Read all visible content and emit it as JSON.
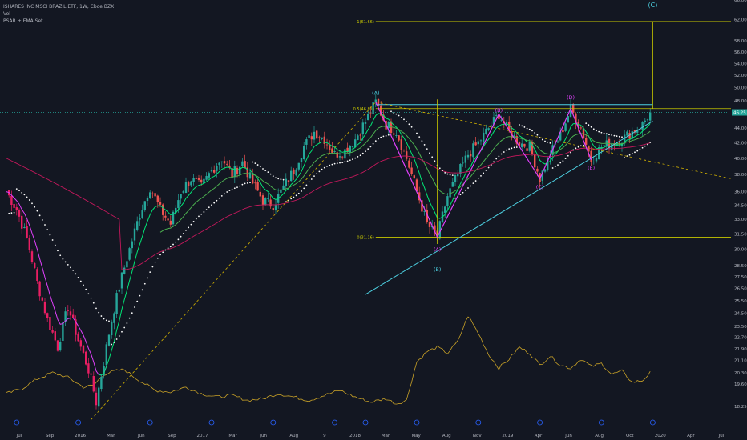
{
  "legend": {
    "title": "ISHARES INC MSCI BRAZIL ETF, 1W, Cboe BZX",
    "vol": "Vol",
    "indicators": "PSAR + EMA Set"
  },
  "colors": {
    "background": "#131722",
    "up": "#26a69a",
    "down": "#ef5350",
    "down_dark": "#e91e63",
    "ema_fast": "#00e676",
    "ema_slow": "#4caf50",
    "ema_long": "#c2185b",
    "ema_mid": "#e040fb",
    "psar": "#ffffff",
    "volume": "#c9a227",
    "fib": "#c8c800",
    "trend": "#4dd0e1",
    "wave": "#e040fb",
    "dashed": "#d4b400"
  },
  "chart_data": {
    "type": "candlestick",
    "title": "ISHARES INC MSCI BRAZIL ETF, 1W, Cboe BZX",
    "ylim": [
      17.0,
      66.0
    ],
    "y_ticks": [
      18.25,
      19.6,
      20.3,
      21.1,
      21.9,
      22.7,
      23.5,
      24.5,
      25.5,
      26.5,
      27.5,
      28.5,
      30.0,
      31.5,
      33.0,
      34.5,
      36.0,
      38.0,
      40.0,
      42.0,
      44.0,
      46.0,
      48.0,
      50.0,
      52.0,
      54.0,
      56.0,
      58.0,
      62.0,
      66.0
    ],
    "y_tick_labels": [
      "18.25",
      "19.60",
      "20.30",
      "21.10",
      "21.90",
      "22.70",
      "23.50",
      "24.50",
      "25.50",
      "26.50",
      "27.50",
      "28.50",
      "30.00",
      "31.50",
      "33.00",
      "34.50",
      "36.00",
      "38.00",
      "40.00",
      "42.00",
      "44.00",
      "46.00",
      "48.00",
      "50.00",
      "52.00",
      "54.00",
      "56.00",
      "58.00",
      "62.00",
      "66.00"
    ],
    "x_ticks": [
      "Jul",
      "Sep",
      "2016",
      "Mar",
      "Jun",
      "Sep",
      "2017",
      "Mar",
      "Jun",
      "Aug",
      "9",
      "2018",
      "Mar",
      "May",
      "Aug",
      "Nov",
      "2019",
      "Apr",
      "Jun",
      "Aug",
      "Oct",
      "2020",
      "Apr",
      "Jul"
    ],
    "current_price": "46.25",
    "price_anchors": [
      [
        0,
        36.0
      ],
      [
        4,
        34.0
      ],
      [
        8,
        31.0
      ],
      [
        12,
        27.0
      ],
      [
        16,
        24.0
      ],
      [
        20,
        22.0
      ],
      [
        24,
        25.0
      ],
      [
        28,
        22.5
      ],
      [
        32,
        20.5
      ],
      [
        35,
        18.5
      ],
      [
        38,
        21.0
      ],
      [
        41,
        24.0
      ],
      [
        45,
        27.5
      ],
      [
        48,
        30.0
      ],
      [
        52,
        33.5
      ],
      [
        56,
        36.5
      ],
      [
        60,
        34.0
      ],
      [
        64,
        32.5
      ],
      [
        68,
        36.0
      ],
      [
        72,
        37.5
      ],
      [
        76,
        36.5
      ],
      [
        80,
        38.5
      ],
      [
        84,
        40.0
      ],
      [
        88,
        38.0
      ],
      [
        92,
        39.5
      ],
      [
        96,
        37.0
      ],
      [
        100,
        35.0
      ],
      [
        104,
        34.5
      ],
      [
        108,
        36.5
      ],
      [
        112,
        38.5
      ],
      [
        116,
        41.5
      ],
      [
        120,
        43.5
      ],
      [
        124,
        42.5
      ],
      [
        128,
        40.5
      ],
      [
        132,
        41.0
      ],
      [
        136,
        42.5
      ],
      [
        140,
        45.0
      ],
      [
        144,
        47.8
      ],
      [
        148,
        44.5
      ],
      [
        152,
        43.5
      ],
      [
        156,
        40.0
      ],
      [
        160,
        36.0
      ],
      [
        164,
        32.5
      ],
      [
        168,
        31.2
      ],
      [
        172,
        35.5
      ],
      [
        176,
        38.0
      ],
      [
        180,
        40.5
      ],
      [
        184,
        42.0
      ],
      [
        188,
        44.0
      ],
      [
        192,
        46.0
      ],
      [
        196,
        43.5
      ],
      [
        200,
        42.0
      ],
      [
        204,
        41.5
      ],
      [
        208,
        37.5
      ],
      [
        212,
        40.5
      ],
      [
        216,
        43.0
      ],
      [
        220,
        46.8
      ],
      [
        224,
        44.0
      ],
      [
        228,
        39.8
      ],
      [
        232,
        41.5
      ],
      [
        236,
        42.0
      ],
      [
        240,
        42.5
      ],
      [
        244,
        43.5
      ],
      [
        248,
        44.5
      ],
      [
        251,
        46.25
      ]
    ],
    "volume_anchors": [
      [
        0,
        19.0
      ],
      [
        6,
        19.3
      ],
      [
        12,
        19.9
      ],
      [
        18,
        20.3
      ],
      [
        24,
        20.0
      ],
      [
        30,
        19.4
      ],
      [
        34,
        19.5
      ],
      [
        38,
        20.2
      ],
      [
        42,
        20.4
      ],
      [
        46,
        20.5
      ],
      [
        50,
        20.0
      ],
      [
        54,
        19.6
      ],
      [
        58,
        19.2
      ],
      [
        64,
        19.1
      ],
      [
        70,
        19.4
      ],
      [
        76,
        19.0
      ],
      [
        82,
        18.8
      ],
      [
        88,
        18.9
      ],
      [
        94,
        18.6
      ],
      [
        100,
        18.7
      ],
      [
        106,
        19.0
      ],
      [
        112,
        18.8
      ],
      [
        118,
        18.6
      ],
      [
        124,
        18.9
      ],
      [
        130,
        19.2
      ],
      [
        136,
        18.8
      ],
      [
        142,
        18.5
      ],
      [
        148,
        18.7
      ],
      [
        152,
        18.4
      ],
      [
        156,
        18.6
      ],
      [
        160,
        21.0
      ],
      [
        164,
        21.7
      ],
      [
        168,
        22.0
      ],
      [
        172,
        21.6
      ],
      [
        176,
        22.4
      ],
      [
        180,
        24.3
      ],
      [
        184,
        23.0
      ],
      [
        188,
        21.5
      ],
      [
        192,
        20.6
      ],
      [
        196,
        21.2
      ],
      [
        200,
        22.0
      ],
      [
        204,
        21.6
      ],
      [
        208,
        20.8
      ],
      [
        212,
        21.4
      ],
      [
        216,
        20.8
      ],
      [
        220,
        20.6
      ],
      [
        224,
        21.2
      ],
      [
        228,
        20.7
      ],
      [
        232,
        20.9
      ],
      [
        236,
        20.2
      ],
      [
        240,
        20.4
      ],
      [
        244,
        19.7
      ],
      [
        248,
        19.8
      ],
      [
        251,
        20.3
      ]
    ],
    "fib_levels": [
      {
        "label": "1(61.66)",
        "value": 61.66
      },
      {
        "label": "0.5(46.81)",
        "value": 46.81
      },
      {
        "label": "0(31.16)",
        "value": 31.16
      }
    ],
    "wave_labels": [
      {
        "label": "(C)",
        "week": 252,
        "value": 64.5,
        "color": "trend"
      },
      {
        "label": "(A)",
        "week": 144,
        "value": 48.9,
        "color": "trend"
      },
      {
        "label": "(B)",
        "week": 192,
        "value": 46.3,
        "color": "wave"
      },
      {
        "label": "(D)",
        "week": 220,
        "value": 48.2,
        "color": "wave"
      },
      {
        "label": "(C)",
        "week": 208,
        "value": 36.3,
        "color": "wave"
      },
      {
        "label": "(E)",
        "week": 228,
        "value": 38.6,
        "color": "wave"
      },
      {
        "label": "(A)",
        "week": 168,
        "value": 29.8,
        "color": "wave"
      },
      {
        "label": "(B)",
        "week": 168,
        "value": 28.0,
        "color": "trend"
      }
    ],
    "wave_path": [
      [
        144,
        47.8
      ],
      [
        168,
        31.2
      ],
      [
        192,
        46.0
      ],
      [
        208,
        37.5
      ],
      [
        220,
        46.8
      ],
      [
        228,
        39.8
      ]
    ]
  }
}
